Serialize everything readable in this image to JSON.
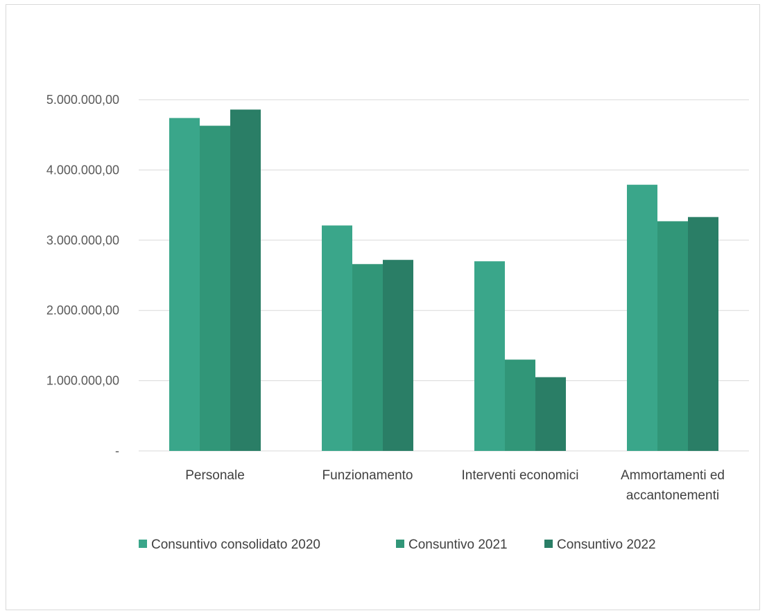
{
  "chart_data": {
    "type": "bar",
    "title": "",
    "xlabel": "",
    "ylabel": "",
    "categories": [
      "Personale",
      "Funzionamento",
      "Interventi economici",
      "Ammortamenti ed accantonementi"
    ],
    "category_lines": [
      [
        "Personale"
      ],
      [
        "Funzionamento"
      ],
      [
        "Interventi economici"
      ],
      [
        "Ammortamenti ed",
        "accantonementi"
      ]
    ],
    "series": [
      {
        "name": "Consuntivo consolidato 2020",
        "color": "#3aa68a",
        "values": [
          4740000,
          3210000,
          2700000,
          3790000
        ]
      },
      {
        "name": "Consuntivo 2021",
        "color": "#319678",
        "values": [
          4630000,
          2660000,
          1300000,
          3270000
        ]
      },
      {
        "name": "Consuntivo 2022",
        "color": "#2a7e66",
        "values": [
          4860000,
          2720000,
          1050000,
          3330000
        ]
      }
    ],
    "ylim": [
      0,
      5000000
    ],
    "yticks": [
      0,
      1000000,
      2000000,
      3000000,
      4000000,
      5000000
    ],
    "ytick_labels": [
      "-",
      "1.000.000,00",
      "2.000.000,00",
      "3.000.000,00",
      "4.000.000,00",
      "5.000.000,00"
    ],
    "grid": true,
    "legend_position": "bottom"
  }
}
